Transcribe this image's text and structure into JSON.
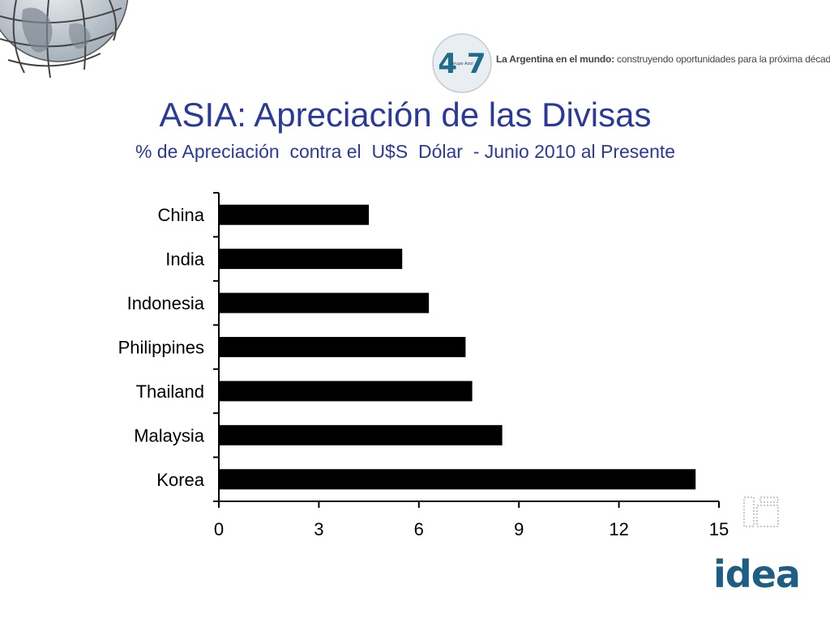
{
  "header": {
    "logo_text": "4 7",
    "logo_caption": "Grupo Azul",
    "tagline_bold": "La Argentina en el mundo:",
    "tagline_rest": " construyendo oportunidades para la próxima década"
  },
  "footer": {
    "brand": "idea"
  },
  "colors": {
    "title": "#2b3a99",
    "bar": "#000000",
    "brand": "#1f5e84"
  },
  "chart_data": {
    "type": "bar",
    "orientation": "horizontal",
    "title": "ASIA: Apreciación de las Divisas",
    "subtitle": "% de Apreciación  contra el  U$S  Dólar  - Junio 2010 al Presente",
    "categories": [
      "China",
      "India",
      "Indonesia",
      "Philippines",
      "Thailand",
      "Malaysia",
      "Korea"
    ],
    "values": [
      4.5,
      5.5,
      6.3,
      7.4,
      7.6,
      8.5,
      14.3
    ],
    "xlim": [
      0,
      15
    ],
    "xticks": [
      0,
      3,
      6,
      9,
      12,
      15
    ],
    "xlabel": "",
    "ylabel": "",
    "grid": false,
    "legend": "none"
  }
}
